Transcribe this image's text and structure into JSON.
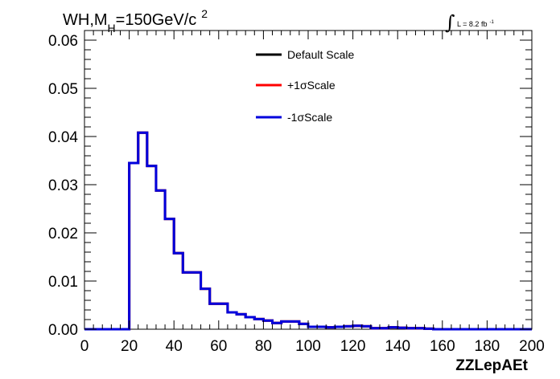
{
  "chart_data": {
    "type": "line",
    "title_main": "WH,M",
    "title_sub": "H",
    "title_rest": "=150GeV/c",
    "title_sup": "2",
    "lumi_label": "L = 8.2 fb",
    "lumi_sup": "-1",
    "xlabel": "ZZLepAEt",
    "ylabel": "",
    "xlim": [
      0,
      200
    ],
    "ylim": [
      0,
      0.062
    ],
    "x_ticks": [
      0,
      20,
      40,
      60,
      80,
      100,
      120,
      140,
      160,
      180,
      200
    ],
    "y_ticks": [
      0,
      0.01,
      0.02,
      0.03,
      0.04,
      0.05,
      0.06
    ],
    "y_tick_labels": [
      "0.00",
      "0.01",
      "0.02",
      "0.03",
      "0.04",
      "0.05",
      "0.06"
    ],
    "legend_position": "top-center",
    "bin_edges": [
      0,
      4,
      8,
      12,
      16,
      20,
      24,
      28,
      32,
      36,
      40,
      44,
      48,
      52,
      56,
      60,
      64,
      68,
      72,
      76,
      80,
      84,
      88,
      92,
      96,
      100,
      104,
      108,
      112,
      116,
      120,
      124,
      128,
      132,
      136,
      140,
      144,
      148,
      152,
      156,
      160,
      164,
      168,
      172,
      176,
      180,
      184,
      188,
      192,
      196,
      200
    ],
    "series": [
      {
        "name": "Default Scale",
        "color": "#000000",
        "values": [
          0,
          0,
          0,
          0,
          0,
          0.0345,
          0.0408,
          0.0339,
          0.0288,
          0.0229,
          0.0158,
          0.0118,
          0.0118,
          0.0084,
          0.0053,
          0.0053,
          0.0035,
          0.0031,
          0.0025,
          0.0021,
          0.0018,
          0.0013,
          0.0016,
          0.0016,
          0.0011,
          0.0005,
          0.0005,
          0.0004,
          0.0005,
          0.0006,
          0.0007,
          0.0006,
          0.0002,
          0.0002,
          0.0004,
          0.0003,
          0.0002,
          0.0002,
          0.0001,
          0,
          0,
          0,
          0,
          0,
          0,
          0,
          0,
          0,
          0,
          0
        ]
      },
      {
        "name": "+1σScale",
        "color": "#ff0000",
        "values": [
          0,
          0,
          0,
          0,
          0,
          0.0345,
          0.0408,
          0.0339,
          0.0288,
          0.0229,
          0.0158,
          0.0118,
          0.0118,
          0.0084,
          0.0053,
          0.0053,
          0.0035,
          0.0031,
          0.0025,
          0.0021,
          0.0018,
          0.0013,
          0.0016,
          0.0016,
          0.0011,
          0.0005,
          0.0005,
          0.0004,
          0.0005,
          0.0006,
          0.0007,
          0.0006,
          0.0002,
          0.0002,
          0.0004,
          0.0003,
          0.0002,
          0.0002,
          0.0001,
          0,
          0,
          0,
          0,
          0,
          0,
          0,
          0,
          0,
          0,
          0
        ]
      },
      {
        "name": "-1σScale",
        "color": "#0000dd",
        "values": [
          0,
          0,
          0,
          0,
          0,
          0.0345,
          0.0408,
          0.0339,
          0.0288,
          0.0229,
          0.0158,
          0.0118,
          0.0118,
          0.0084,
          0.0053,
          0.0053,
          0.0035,
          0.0031,
          0.0025,
          0.0021,
          0.0018,
          0.0013,
          0.0016,
          0.0016,
          0.0011,
          0.0005,
          0.0005,
          0.0004,
          0.0005,
          0.0006,
          0.0007,
          0.0006,
          0.0002,
          0.0002,
          0.0004,
          0.0003,
          0.0002,
          0.0002,
          0.0001,
          0,
          0,
          0,
          0,
          0,
          0,
          0,
          0,
          0,
          0,
          0
        ]
      }
    ]
  }
}
